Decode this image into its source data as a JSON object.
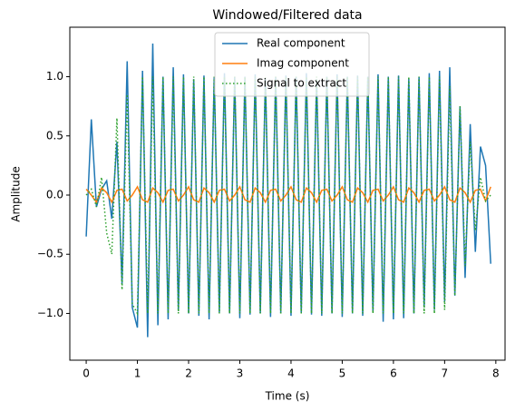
{
  "chart_data": {
    "type": "line",
    "title": "Windowed/Filtered data",
    "xlabel": "Time (s)",
    "ylabel": "Amplitude",
    "x": [
      0,
      0.1,
      0.2,
      0.3,
      0.4,
      0.5,
      0.6,
      0.7,
      0.8,
      0.9,
      1,
      1.1,
      1.2,
      1.3,
      1.4,
      1.5,
      1.6,
      1.7,
      1.8,
      1.9,
      2,
      2.1,
      2.2,
      2.3,
      2.4,
      2.5,
      2.6,
      2.7,
      2.8,
      2.9,
      3,
      3.1,
      3.2,
      3.3,
      3.4,
      3.5,
      3.6,
      3.7,
      3.8,
      3.9,
      4,
      4.1,
      4.2,
      4.3,
      4.4,
      4.5,
      4.6,
      4.7,
      4.8,
      4.9,
      5,
      5.1,
      5.2,
      5.3,
      5.4,
      5.5,
      5.6,
      5.7,
      5.8,
      5.9,
      6,
      6.1,
      6.2,
      6.3,
      6.4,
      6.5,
      6.6,
      6.7,
      6.8,
      6.9,
      7,
      7.1,
      7.2,
      7.3,
      7.4,
      7.5,
      7.6,
      7.7,
      7.8,
      7.9
    ],
    "series": [
      {
        "name": "Real component",
        "color": "#1f77b4",
        "style": "solid",
        "values": [
          -0.35,
          0.64,
          -0.1,
          0.05,
          0.12,
          -0.2,
          0.45,
          -0.75,
          1.13,
          -0.95,
          -1.12,
          1.05,
          -1.2,
          1.28,
          -1.1,
          1.0,
          -1.05,
          1.08,
          -0.98,
          1.02,
          -1.0,
          0.98,
          -1.02,
          1.01,
          -1.05,
          1.0,
          -0.99,
          1.03,
          -1.0,
          1.0,
          -1.04,
          1.0,
          -1.01,
          1.02,
          -1.0,
          0.99,
          -1.03,
          1.0,
          -1.0,
          1.01,
          -1.02,
          1.0,
          -1.0,
          1.03,
          -1.01,
          0.98,
          -1.02,
          1.0,
          -1.0,
          1.02,
          -1.03,
          1.0,
          -1.0,
          1.01,
          -1.02,
          1.0,
          -0.99,
          1.02,
          -1.07,
          1.0,
          -1.05,
          1.01,
          -1.04,
          0.98,
          -1.0,
          1.0,
          -0.95,
          1.03,
          -0.97,
          1.05,
          -0.9,
          1.08,
          -0.85,
          0.75,
          -0.7,
          0.6,
          -0.48,
          0.41,
          0.25,
          -0.58
        ]
      },
      {
        "name": "Imag component",
        "color": "#ff7f0e",
        "style": "solid",
        "values": [
          0.05,
          0.0,
          -0.06,
          0.06,
          0.02,
          -0.06,
          0.04,
          0.05,
          -0.05,
          0.0,
          0.07,
          -0.04,
          -0.06,
          0.06,
          0.02,
          -0.06,
          0.04,
          0.05,
          -0.05,
          0.0,
          0.07,
          -0.04,
          -0.06,
          0.06,
          0.02,
          -0.06,
          0.04,
          0.05,
          -0.05,
          0.0,
          0.07,
          -0.04,
          -0.06,
          0.06,
          0.02,
          -0.06,
          0.04,
          0.05,
          -0.05,
          0.0,
          0.07,
          -0.04,
          -0.06,
          0.06,
          0.02,
          -0.06,
          0.04,
          0.05,
          -0.05,
          0.0,
          0.07,
          -0.04,
          -0.06,
          0.06,
          0.02,
          -0.06,
          0.04,
          0.05,
          -0.05,
          0.0,
          0.07,
          -0.04,
          -0.06,
          0.06,
          0.02,
          -0.06,
          0.04,
          0.05,
          -0.05,
          0.0,
          0.07,
          -0.04,
          -0.06,
          0.06,
          0.02,
          -0.06,
          0.04,
          0.05,
          -0.05,
          0.07
        ]
      },
      {
        "name": "Signal to extract",
        "color": "#2ca02c",
        "style": "dotted",
        "values": [
          0.0,
          0.05,
          -0.1,
          0.15,
          -0.32,
          -0.5,
          0.65,
          -0.8,
          0.85,
          -0.92,
          -1,
          1,
          -1,
          1,
          -1,
          1,
          -1,
          1,
          -1,
          1,
          -1,
          1,
          -1,
          1,
          -1,
          1,
          -1,
          1,
          -1,
          1,
          -1,
          1,
          -1,
          1,
          -1,
          1,
          -1,
          1,
          -1,
          1,
          -1,
          1,
          -1,
          1,
          -1,
          1,
          -1,
          1,
          -1,
          1,
          -1,
          1,
          -1,
          1,
          -1,
          1,
          -1,
          1,
          -1,
          1,
          -1,
          1,
          -1,
          1,
          -1,
          1,
          -1,
          1,
          -1,
          1,
          -0.97,
          0.92,
          -0.85,
          0.75,
          -0.6,
          0.45,
          -0.3,
          0.15,
          -0.05,
          0.0
        ]
      }
    ],
    "xlim": [
      -0.32,
      8.18
    ],
    "ylim": [
      -1.395,
      1.418
    ],
    "xticks": [
      0,
      1,
      2,
      3,
      4,
      5,
      6,
      7,
      8
    ],
    "yticks": [
      {
        "value": -1.0,
        "label": "−1.0"
      },
      {
        "value": -0.5,
        "label": "−0.5"
      },
      {
        "value": 0.0,
        "label": "0.0"
      },
      {
        "value": 0.5,
        "label": "0.5"
      },
      {
        "value": 1.0,
        "label": "1.0"
      }
    ],
    "legend": "upper center"
  }
}
